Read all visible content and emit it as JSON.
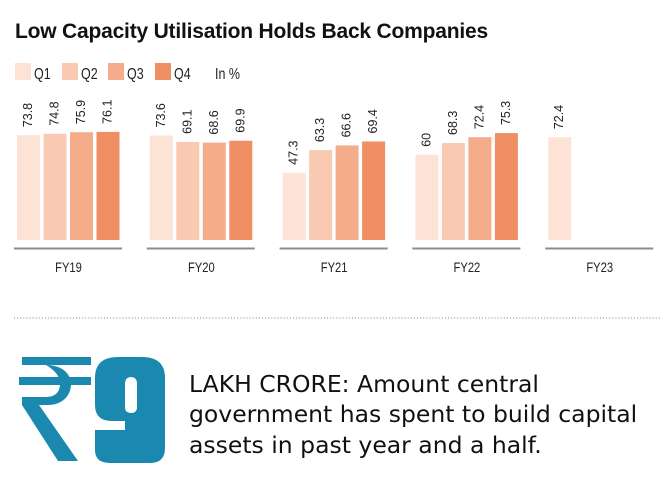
{
  "title": "Low Capacity Utilisation Holds Back Companies",
  "chart_data": {
    "type": "bar",
    "title": "Low Capacity Utilisation Holds Back Companies",
    "categories": [
      "FY19",
      "FY20",
      "FY21",
      "FY22",
      "FY23"
    ],
    "series": [
      {
        "name": "Q1",
        "color": "#FDE2D6",
        "values": [
          73.8,
          73.6,
          47.3,
          60,
          72.4
        ]
      },
      {
        "name": "Q2",
        "color": "#F9C9B2",
        "values": [
          74.8,
          69.1,
          63.3,
          68.3,
          null
        ]
      },
      {
        "name": "Q3",
        "color": "#F5AC8B",
        "values": [
          75.9,
          68.6,
          66.6,
          72.4,
          null
        ]
      },
      {
        "name": "Q4",
        "color": "#EF8F63",
        "values": [
          76.1,
          69.9,
          69.4,
          75.3,
          null
        ]
      }
    ],
    "unit_label": "In %",
    "xlabel": "",
    "ylabel": "",
    "ylim": [
      0,
      80
    ],
    "grid": false,
    "legend_position": "top-left",
    "data_labels": true
  },
  "callout": {
    "currency_symbol": "₹",
    "value": "9",
    "accent_color": "#1B89AF",
    "lines": [
      "LAKH CRORE: Amount central",
      "government has spent to build capital",
      "assets in past year and a half."
    ]
  }
}
